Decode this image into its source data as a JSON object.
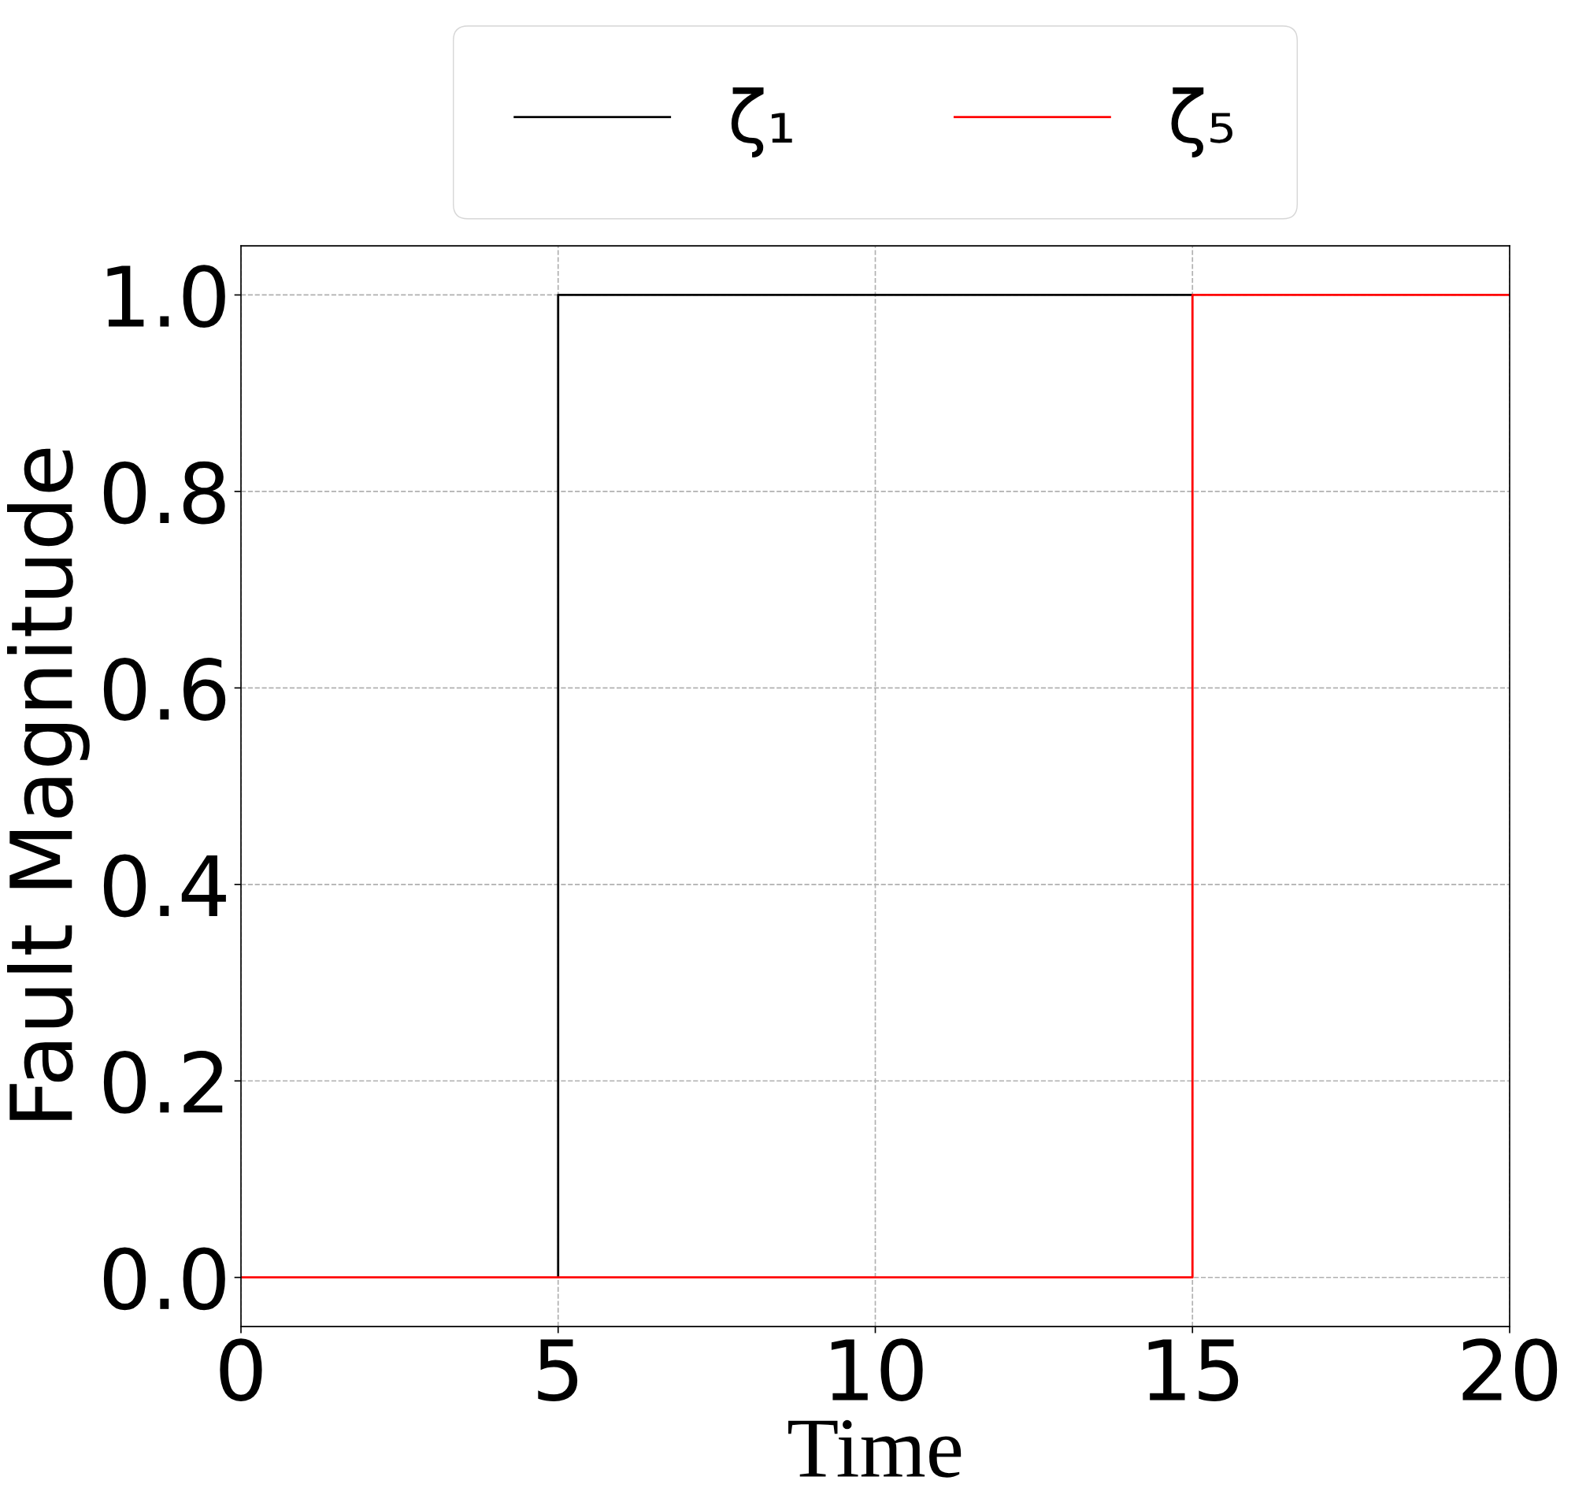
{
  "chart_data": {
    "type": "line",
    "xlabel": "Time",
    "ylabel": "Fault Magnitude",
    "series": [
      {
        "name": "ζ₁",
        "color": "#000000",
        "x": [
          5,
          5,
          15
        ],
        "values": [
          0,
          1,
          1
        ]
      },
      {
        "name": "ζ₅",
        "color": "#ff0000",
        "x": [
          0,
          15,
          15,
          20
        ],
        "values": [
          0,
          0,
          1,
          1
        ]
      }
    ],
    "xlim": [
      0,
      20
    ],
    "xticks": [
      0,
      5,
      10,
      15,
      20
    ],
    "ylim": [
      -0.05,
      1.05
    ],
    "yticks": [
      {
        "value": 0,
        "label": "0.0"
      },
      0.2,
      0.4,
      0.6,
      0.8,
      {
        "value": 1,
        "label": "1.0"
      }
    ],
    "grid": true,
    "legend": "top",
    "marker": "none",
    "line_style": "solid"
  }
}
